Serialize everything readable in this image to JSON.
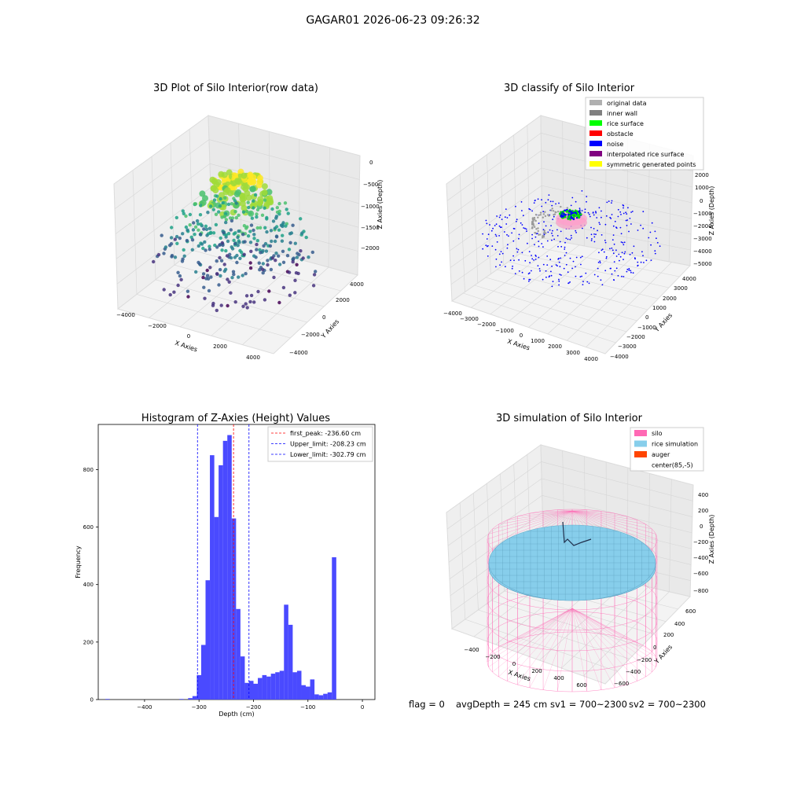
{
  "figure_title": "GAGAR01 2026-06-23 09:26:32",
  "chart_data": [
    {
      "type": "scatter",
      "title": "3D Plot of Silo Interior(row data)",
      "xlabel": "X Axies",
      "ylabel": "Y Axies",
      "zlabel": "Z Axies (Depth)",
      "x_ticks": [
        "−4000",
        "−2000",
        "0",
        "2000",
        "4000"
      ],
      "y_ticks": [
        "−4000",
        "−2000",
        "0",
        "2000",
        "4000"
      ],
      "z_ticks": [
        "0",
        "−500",
        "−1000",
        "−1500",
        "−2000"
      ],
      "colormap": "viridis",
      "description_of_points": "dense layered point cloud, yellow near top (~-300), green middle, purple/blue lower (~-2200)"
    },
    {
      "type": "scatter",
      "title": "3D classify of Silo Interior",
      "xlabel": "X Axies",
      "ylabel": "Y Axies",
      "zlabel": "Z Axies (Depth)",
      "x_ticks": [
        "−4000",
        "−3000",
        "−2000",
        "−1000",
        "0",
        "1000",
        "2000",
        "3000",
        "4000"
      ],
      "y_ticks": [
        "4000",
        "3000",
        "2000",
        "1000",
        "0",
        "−1000",
        "−2000",
        "−3000",
        "−4000"
      ],
      "z_ticks": [
        "2000",
        "1000",
        "0",
        "−1000",
        "−2000",
        "−3000",
        "−4000",
        "−5000"
      ],
      "legend": [
        {
          "label": "original data",
          "color": "#b0b0b0"
        },
        {
          "label": "inner wall",
          "color": "#808080"
        },
        {
          "label": "rice surface",
          "color": "#00ff00"
        },
        {
          "label": "obstacle",
          "color": "#ff0000"
        },
        {
          "label": "noise",
          "color": "#0000ff"
        },
        {
          "label": "interpolated rice surface",
          "color": "#800080"
        },
        {
          "label": "symmetric generated points",
          "color": "#ffff00"
        }
      ]
    },
    {
      "type": "bar",
      "title": "Histogram of Z-Axies (Height) Values",
      "xlabel": "Depth (cm)",
      "ylabel": "Frequency",
      "xlim": [
        -485,
        23
      ],
      "ylim": [
        0,
        957
      ],
      "x_ticks": [
        -400,
        -300,
        -200,
        -100,
        0
      ],
      "y_ticks": [
        0,
        200,
        400,
        600,
        800
      ],
      "bar_color": "#4a4aff",
      "bin_width": 8.05,
      "bin_starts": [
        -472,
        -464,
        -456,
        -448,
        -440,
        -432,
        -424,
        -416,
        -408,
        -400,
        -392,
        -384,
        -376,
        -368,
        -360,
        -352,
        -344,
        -336,
        -328,
        -320,
        -312,
        -304,
        -296,
        -288,
        -280,
        -272,
        -264,
        -256,
        -248,
        -240,
        -232,
        -224,
        -216,
        -208,
        -200,
        -192,
        -184,
        -176,
        -168,
        -160,
        -152,
        -144,
        -136,
        -128,
        -120,
        -112,
        -104,
        -96,
        -88,
        -80,
        -72,
        -64,
        -56,
        -48,
        -40,
        -32,
        -24,
        -16,
        -8
      ],
      "values": [
        2,
        0,
        0,
        0,
        0,
        0,
        0,
        0,
        0,
        0,
        0,
        0,
        0,
        0,
        0,
        0,
        0,
        2,
        0,
        5,
        12,
        85,
        190,
        415,
        850,
        635,
        815,
        900,
        920,
        630,
        315,
        150,
        58,
        65,
        55,
        75,
        85,
        80,
        90,
        95,
        100,
        330,
        260,
        95,
        100,
        50,
        45,
        70,
        18,
        15,
        20,
        25,
        495,
        0,
        0,
        0,
        0,
        0,
        0
      ],
      "vertical_lines": [
        {
          "label": "first_peak: -236.60 cm",
          "x": -236.6,
          "color": "#ff0000"
        },
        {
          "label": "Upper_limit: -208.23 cm",
          "x": -208.23,
          "color": "#0000ff"
        },
        {
          "label": "Lower_limit: -302.79 cm",
          "x": -302.79,
          "color": "#0000ff"
        }
      ],
      "legend_position": "top-right"
    },
    {
      "type": "surface",
      "title": "3D simulation of Silo Interior",
      "xlabel": "X Axies",
      "ylabel": "Y Axies",
      "zlabel": "Z Axies (Depth)",
      "x_ticks": [
        "−400",
        "−200",
        "0",
        "200",
        "400",
        "600"
      ],
      "y_ticks": [
        "600",
        "400",
        "200",
        "0",
        "−200",
        "−400",
        "−600"
      ],
      "z_ticks": [
        "400",
        "200",
        "0",
        "−200",
        "−400",
        "−600",
        "−800"
      ],
      "legend": [
        {
          "label": "silo",
          "color": "#ff69b4"
        },
        {
          "label": "rice simulation",
          "color": "#87ceeb"
        },
        {
          "label": "auger",
          "color": "#ff4500"
        },
        {
          "label": "center(85,-5)",
          "color": ""
        }
      ]
    }
  ],
  "status_line": {
    "flag": "flag = 0",
    "avg_depth": "avgDepth = 245 cm",
    "sv1": "sv1 = 700~2300",
    "sv2": "sv2 = 700~2300"
  }
}
